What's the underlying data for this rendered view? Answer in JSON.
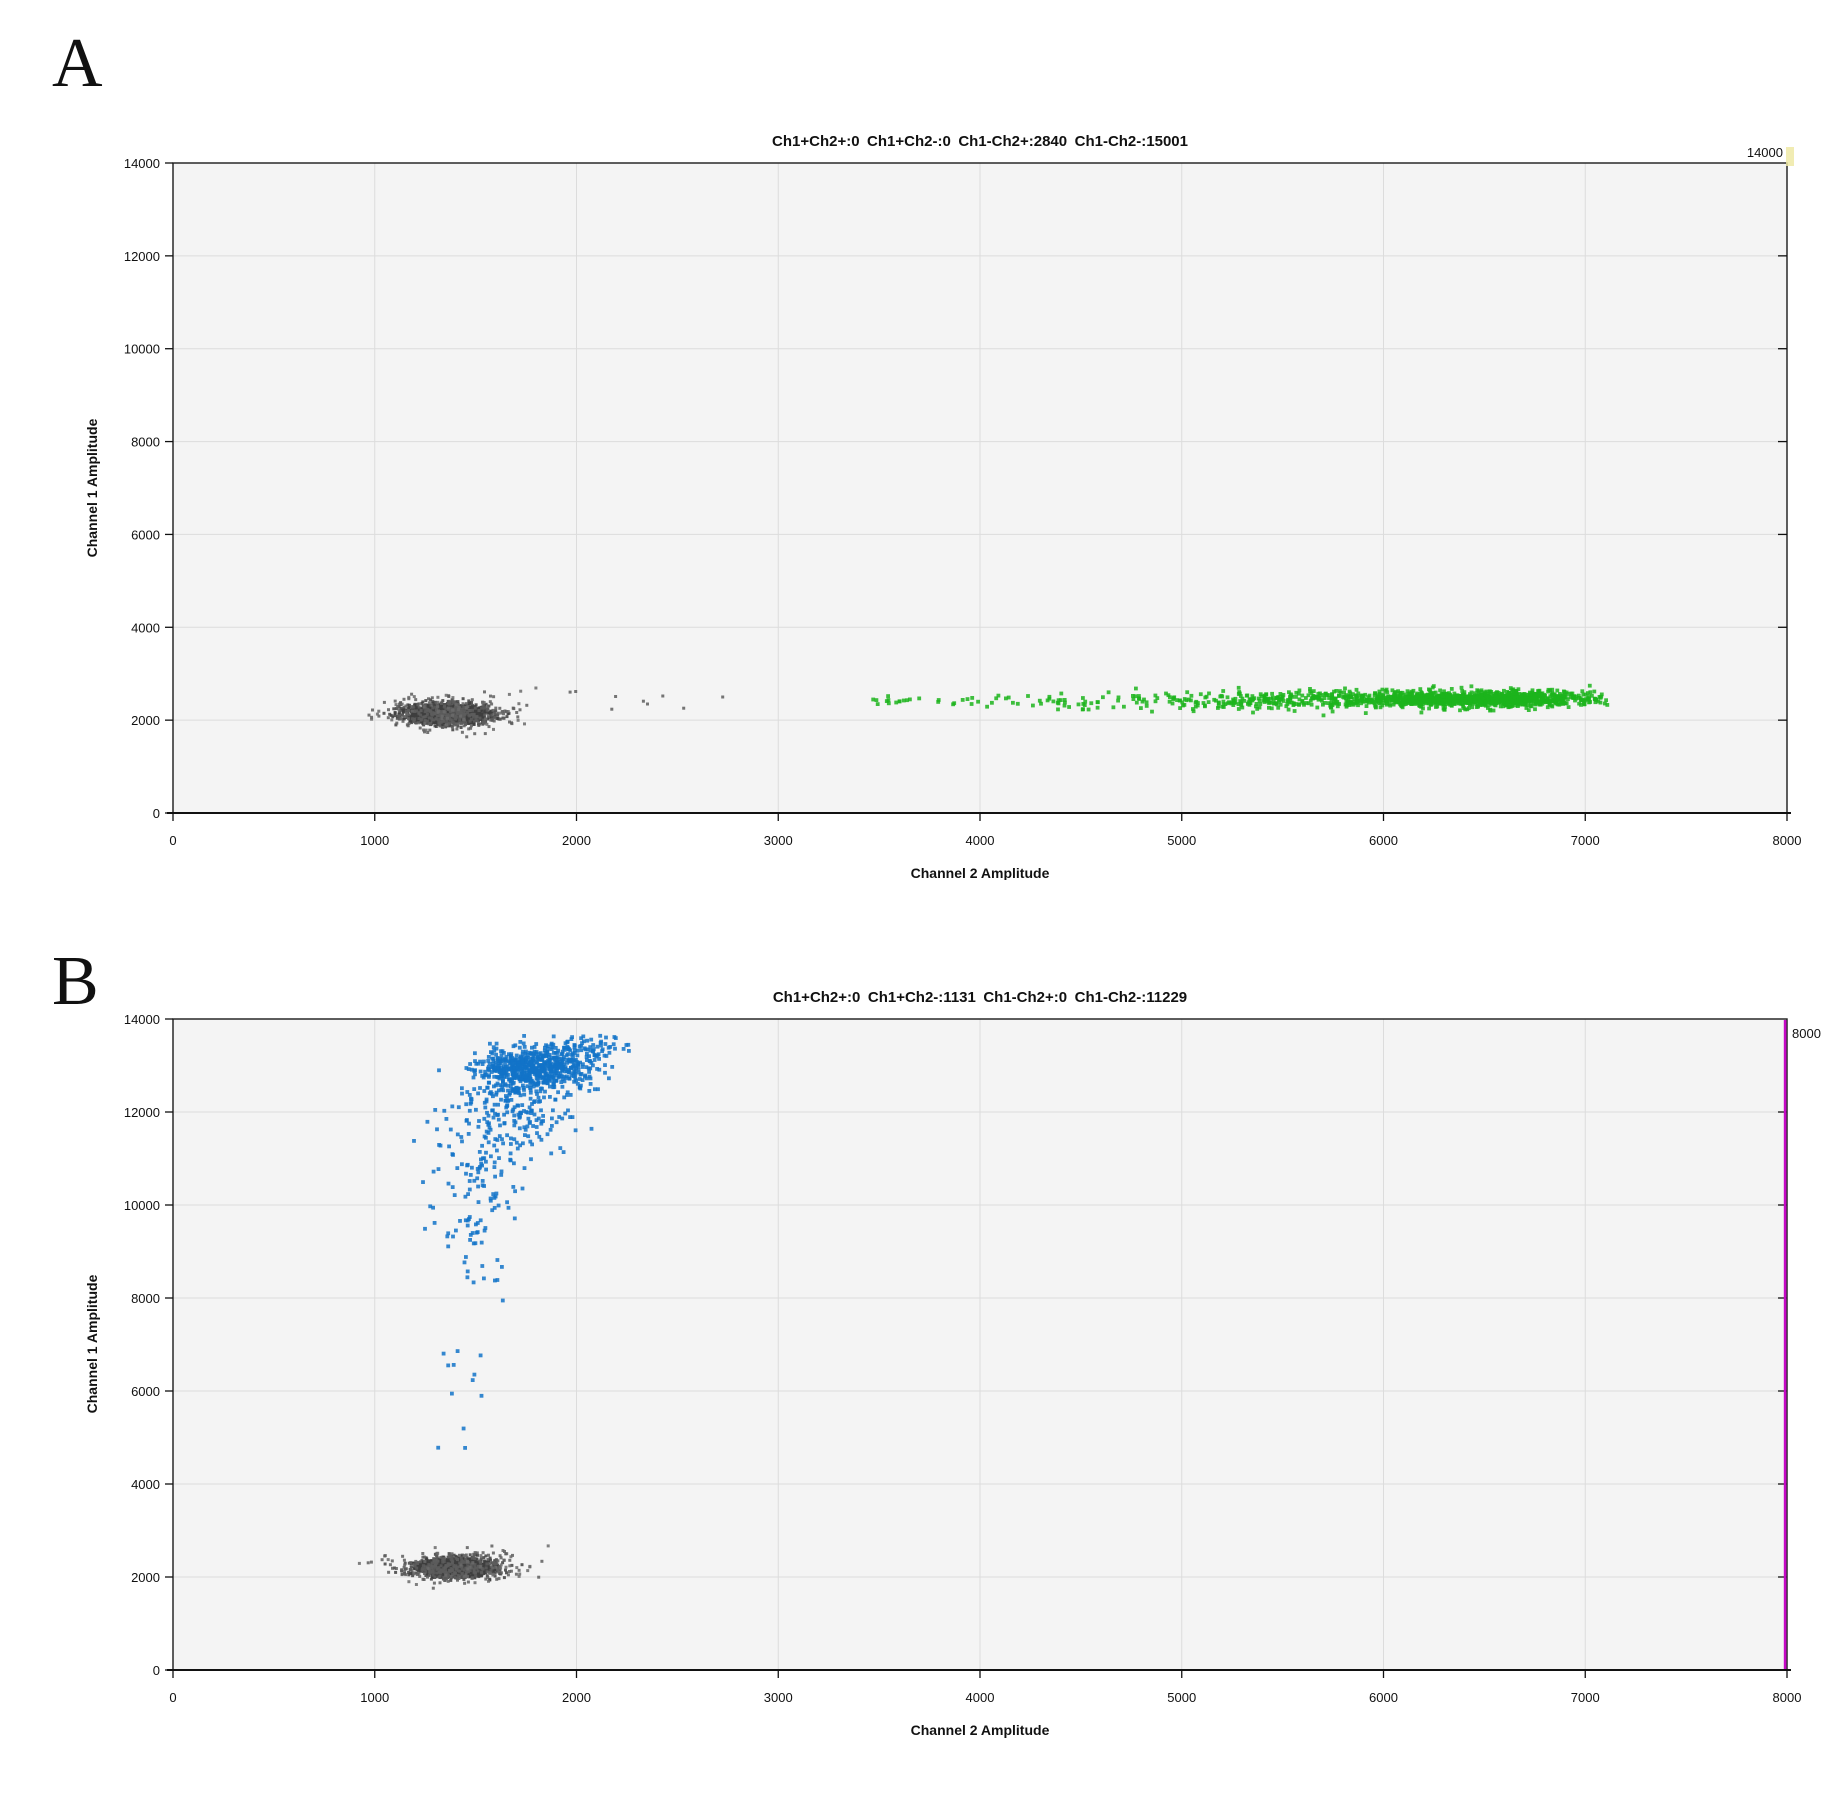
{
  "panels": [
    {
      "letter": "A",
      "title": "Ch1+Ch2+:0 Ch1+Ch2-:0 Ch1-Ch2+:2840 Ch1-Ch2-:15001",
      "corner_label": "14000",
      "x_label": "Channel 2 Amplitude",
      "y_label": "Channel 1 Amplitude",
      "chart_data": {
        "type": "scatter",
        "title": "Ch1+Ch2+:0 Ch1+Ch2-:0 Ch1-Ch2+:2840 Ch1-Ch2-:15001",
        "xlabel": "Channel 2 Amplitude",
        "ylabel": "Channel 1 Amplitude",
        "xlim": [
          0,
          8000
        ],
        "ylim": [
          0,
          14000
        ],
        "x_ticks": [
          0,
          1000,
          2000,
          3000,
          4000,
          5000,
          6000,
          7000,
          8000
        ],
        "y_ticks": [
          0,
          2000,
          4000,
          6000,
          8000,
          10000,
          12000,
          14000
        ],
        "grid": true,
        "plot_bg": "#f4f4f4",
        "grid_color": "#dcdcdc",
        "populations": [
          {
            "name": "Ch1+Ch2+",
            "count": 0
          },
          {
            "name": "Ch1+Ch2-",
            "count": 0
          },
          {
            "name": "Ch1-Ch2+",
            "count": 2840,
            "color": "#1cb41c"
          },
          {
            "name": "Ch1-Ch2-",
            "count": 15001,
            "color": "#3e3e3e"
          }
        ],
        "threshold": {
          "label": "14000",
          "style": "corner-marker",
          "color": "#efe9a6"
        },
        "clusters": [
          {
            "name": "ch2-negative-droplets",
            "color": "#3e3e3e",
            "r": 1.5,
            "seed": 2,
            "components": [
              {
                "n": 1700,
                "cx": 1358,
                "cy": 2130,
                "sx": 95,
                "sy": 100
              },
              {
                "n": 300,
                "cx": 1360,
                "cy": 2140,
                "sx": 150,
                "sy": 165,
                "color": "#5d5d5d"
              },
              {
                "n": 55,
                "cx": 1370,
                "cy": 2150,
                "sx": 205,
                "sy": 235,
                "color": "#6a6a6a"
              },
              {
                "n": 11,
                "dist": "uniform",
                "x": [
                  1620,
                  2960
                ],
                "y": [
                  2130,
                  2630
                ],
                "color": "#5d5d5d"
              }
            ]
          },
          {
            "name": "ch2-positive-droplets",
            "color": "#1cb41c",
            "r": 1.9,
            "seed": 7,
            "components": [
              {
                "n": 980,
                "cx": 6500,
                "cy": 2465,
                "sx": 290,
                "sy": 82,
                "clipx": [
                  4900,
                  7110
                ]
              },
              {
                "n": 400,
                "cx": 5780,
                "cy": 2430,
                "sx": 470,
                "sy": 95,
                "clipx": [
                  4150,
                  7110
                ]
              },
              {
                "n": 80,
                "cx": 4700,
                "cy": 2415,
                "sx": 490,
                "sy": 80,
                "clipx": [
                  3700,
                  7110
                ]
              },
              {
                "n": 26,
                "dist": "uniform",
                "x": [
                  3470,
                  4450
                ],
                "y": [
                  2330,
                  2520
                ]
              },
              {
                "n": 3,
                "dist": "uniform",
                "x": [
                  5700,
                  6600
                ],
                "y": [
                  2060,
                  2260
                ]
              }
            ]
          }
        ]
      }
    },
    {
      "letter": "B",
      "title": "Ch1+Ch2+:0 Ch1+Ch2-:1131 Ch1-Ch2+:0 Ch1-Ch2-:11229",
      "corner_label": "8000",
      "x_label": "Channel 2 Amplitude",
      "y_label": "Channel 1 Amplitude",
      "chart_data": {
        "type": "scatter",
        "title": "Ch1+Ch2+:0 Ch1+Ch2-:1131 Ch1-Ch2+:0 Ch1-Ch2-:11229",
        "xlabel": "Channel 2 Amplitude",
        "ylabel": "Channel 1 Amplitude",
        "xlim": [
          0,
          8000
        ],
        "ylim": [
          0,
          14000
        ],
        "x_ticks": [
          0,
          1000,
          2000,
          3000,
          4000,
          5000,
          6000,
          7000,
          8000
        ],
        "y_ticks": [
          0,
          2000,
          4000,
          6000,
          8000,
          10000,
          12000,
          14000
        ],
        "grid": true,
        "plot_bg": "#f4f4f4",
        "grid_color": "#dcdcdc",
        "populations": [
          {
            "name": "Ch1+Ch2+",
            "count": 0
          },
          {
            "name": "Ch1+Ch2-",
            "count": 1131,
            "color": "#1273c8"
          },
          {
            "name": "Ch1-Ch2+",
            "count": 0
          },
          {
            "name": "Ch1-Ch2-",
            "count": 11229,
            "color": "#3e3e3e"
          }
        ],
        "threshold": {
          "label": "8000",
          "style": "right-edge-line",
          "color": "#c607c6"
        },
        "clusters": [
          {
            "name": "ch1-positive-droplets",
            "color": "#1273c8",
            "r": 1.9,
            "seed": 11,
            "components": [
              {
                "n": 640,
                "cx": 1785,
                "cy": 12950,
                "sx": 140,
                "sy": 230,
                "clipx": [
                  1450,
                  2300
                ],
                "clipy": [
                  12350,
                  13640
                ]
              },
              {
                "n": 70,
                "cx": 2040,
                "cy": 13380,
                "sx": 115,
                "sy": 145,
                "clipx": [
                  1800,
                  2290
                ],
                "clipy": [
                  12900,
                  13790
                ]
              },
              {
                "n": 200,
                "cx": 1680,
                "cy": 12150,
                "sx": 150,
                "sy": 430,
                "clipy": [
                  10900,
                  13300
                ]
              },
              {
                "n": 90,
                "cx": 1530,
                "cy": 10900,
                "sx": 125,
                "sy": 620,
                "clipy": [
                  9000,
                  12600
                ]
              },
              {
                "n": 42,
                "cx": 1470,
                "cy": 9400,
                "sx": 105,
                "sy": 520,
                "clipy": [
                  7600,
                  10800
                ]
              },
              {
                "n": 12,
                "dist": "uniform",
                "x": [
                  1300,
                  1530
                ],
                "y": [
                  4350,
                  6900
                ]
              }
            ]
          },
          {
            "name": "ch1-negative-droplets",
            "color": "#3e3e3e",
            "r": 1.5,
            "seed": 5,
            "components": [
              {
                "n": 1650,
                "cx": 1392,
                "cy": 2200,
                "sx": 90,
                "sy": 95
              },
              {
                "n": 290,
                "cx": 1395,
                "cy": 2205,
                "sx": 145,
                "sy": 150,
                "color": "#5d5d5d"
              },
              {
                "n": 45,
                "cx": 1400,
                "cy": 2210,
                "sx": 200,
                "sy": 205,
                "color": "#6a6a6a"
              }
            ]
          }
        ]
      }
    }
  ]
}
